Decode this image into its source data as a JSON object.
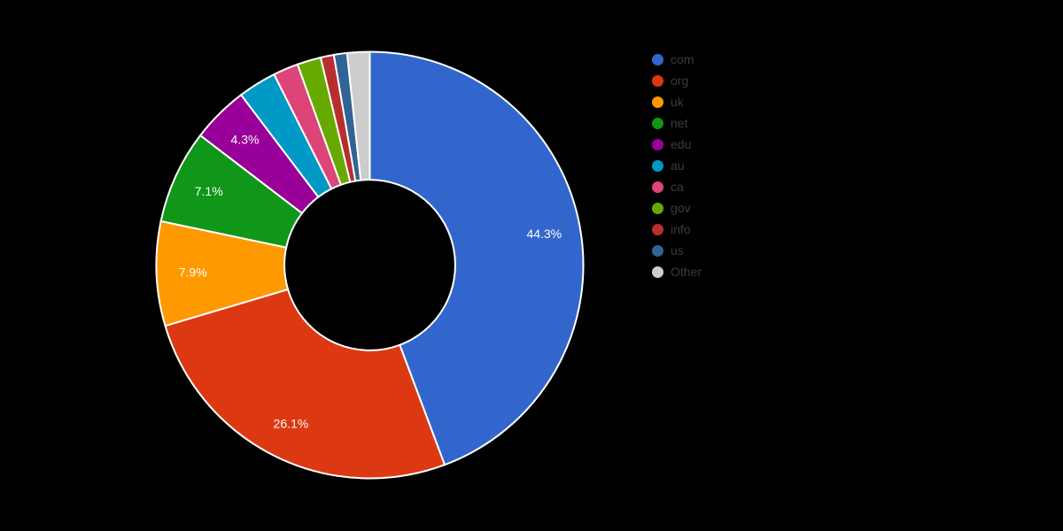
{
  "chart_data": {
    "type": "pie",
    "subtype": "donut",
    "title": "",
    "unit": "percent",
    "categories": [
      "com",
      "org",
      "uk",
      "net",
      "edu",
      "au",
      "ca",
      "gov",
      "info",
      "us",
      "Other"
    ],
    "values": [
      44.3,
      26.1,
      7.9,
      7.1,
      4.3,
      2.9,
      1.9,
      1.8,
      1.0,
      1.0,
      1.7
    ],
    "displayed_slice_labels": [
      "44.3%",
      "26.1%",
      "7.9%",
      "7.1%",
      "4.3%",
      "",
      "",
      "",
      "",
      "",
      ""
    ],
    "label_min_pct": 4.0,
    "colors": [
      "#3366CC",
      "#DC3912",
      "#FF9900",
      "#109618",
      "#990099",
      "#0099C6",
      "#DD4477",
      "#66AA00",
      "#B82E2E",
      "#316395",
      "#CDCDCD"
    ],
    "hole_ratio": 0.4,
    "start_angle": "top",
    "direction": "clockwise",
    "legend_position": "right"
  },
  "styles": {
    "background_color": "#000000",
    "slice_border_color": "#FFFFFF",
    "slice_label_color": "#FFFFFF",
    "legend_text_color": "#3C3C3C"
  }
}
